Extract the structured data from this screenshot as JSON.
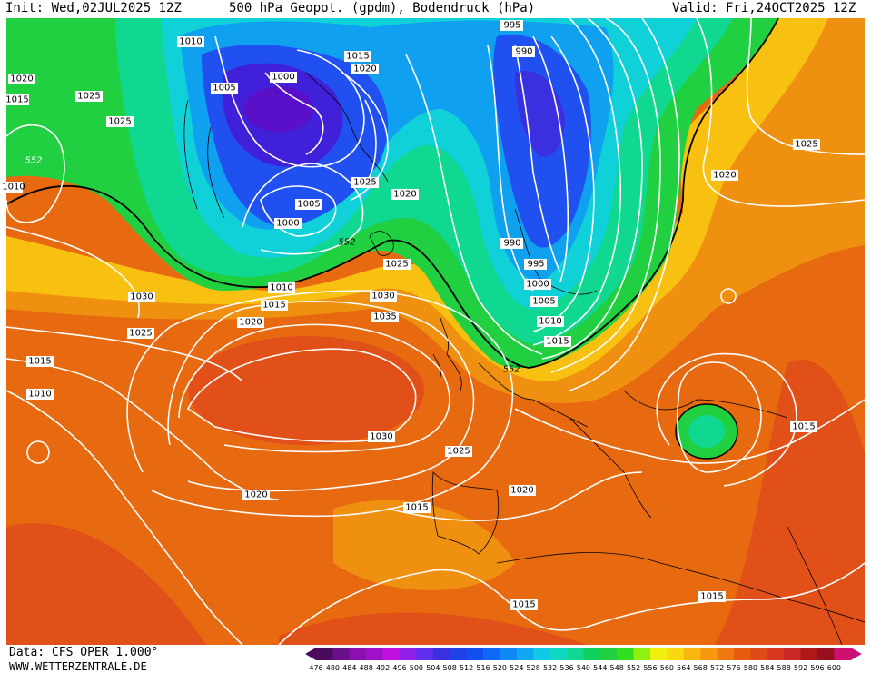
{
  "header": {
    "init": "Init: Wed,02JUL2025 12Z",
    "title": "500 hPa Geopot. (gpdm), Bodendruck (hPa)",
    "valid": "Valid: Fri,24OCT2025 12Z"
  },
  "footer": {
    "source": "Data: CFS OPER 1.000°",
    "url": "WWW.WETTERZENTRALE.DE"
  },
  "legend": {
    "ticks": [
      "476",
      "480",
      "484",
      "488",
      "492",
      "496",
      "500",
      "504",
      "508",
      "512",
      "516",
      "520",
      "524",
      "528",
      "532",
      "536",
      "540",
      "544",
      "548",
      "552",
      "556",
      "560",
      "564",
      "568",
      "572",
      "576",
      "580",
      "584",
      "588",
      "592",
      "596",
      "600"
    ],
    "colors": [
      "#4a0a5e",
      "#6a0f8a",
      "#8a10b0",
      "#a010c8",
      "#c010e0",
      "#9020e8",
      "#6030ee",
      "#3a30e0",
      "#2040e8",
      "#1050f0",
      "#1068f8",
      "#1088f8",
      "#10a8f0",
      "#10c8e8",
      "#10d8c0",
      "#10d890",
      "#10d060",
      "#20d040",
      "#30e020",
      "#90f010",
      "#f0f010",
      "#f8d810",
      "#f8b810",
      "#f89810",
      "#f07810",
      "#e85a10",
      "#e04a18",
      "#d83820",
      "#c82828",
      "#b01818",
      "#981020",
      "#d01070"
    ],
    "edge_color": "#c8107a"
  },
  "map": {
    "contour_labels": [
      "1010",
      "1020",
      "1015",
      "1025",
      "1025",
      "1005",
      "1000",
      "1015",
      "1020",
      "995",
      "990",
      "552",
      "1025",
      "1005",
      "1000",
      "1020",
      "990",
      "995",
      "1000",
      "1005",
      "1010",
      "1015",
      "552",
      "1025",
      "1025",
      "1020",
      "1030",
      "1010",
      "1015",
      "1020",
      "1025",
      "1030",
      "1035",
      "1015",
      "1010",
      "1030",
      "1025",
      "1020",
      "1015",
      "1020",
      "552",
      "1015",
      "1015",
      "1015",
      "1010"
    ],
    "colors": {
      "deep_purple": "#5a10c8",
      "purple": "#4020d8",
      "blue": "#2050f0",
      "light_blue": "#10a0f0",
      "cyan": "#10d0d8",
      "teal": "#10d890",
      "green": "#20d040",
      "yellow": "#f8f010",
      "gold": "#f8c010",
      "orange": "#f09010",
      "deep_orange": "#e86a10",
      "red_orange": "#e05018"
    }
  }
}
